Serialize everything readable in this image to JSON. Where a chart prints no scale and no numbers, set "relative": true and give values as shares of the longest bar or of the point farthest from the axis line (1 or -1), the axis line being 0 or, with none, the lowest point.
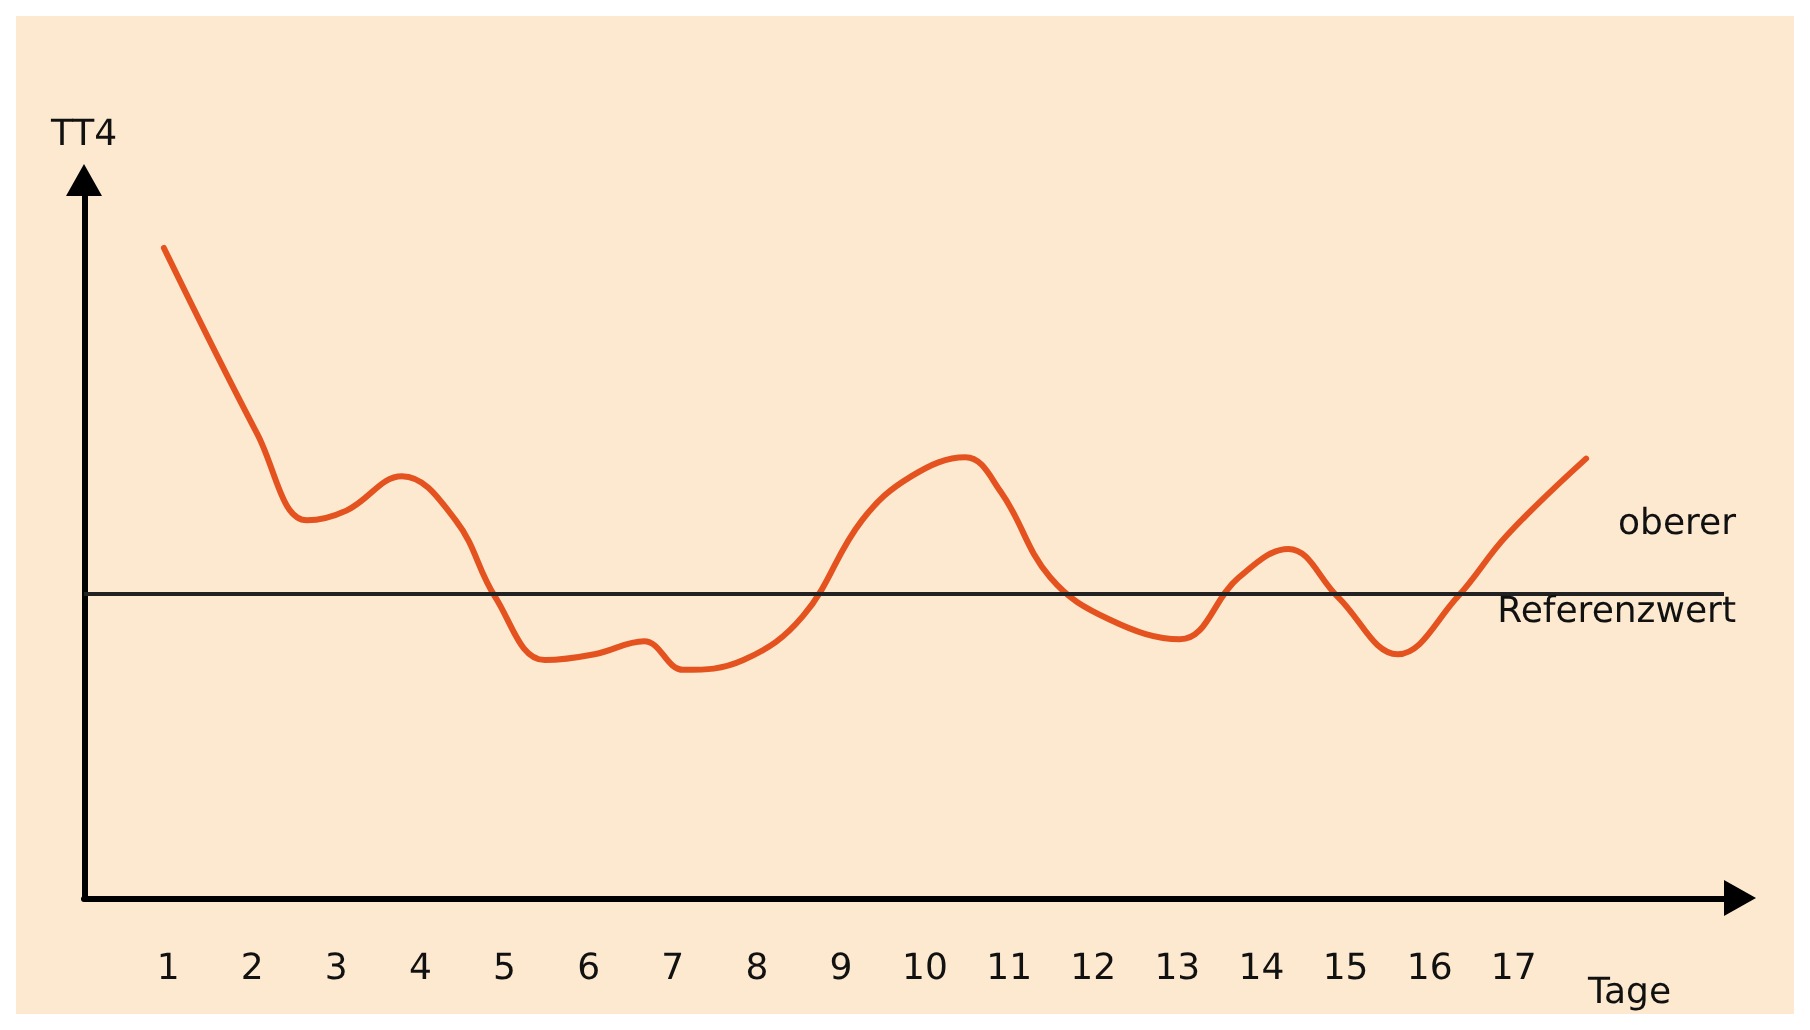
{
  "chart_data": {
    "type": "line",
    "relative": true,
    "ylabel": "TT4",
    "xlabel": "Tage",
    "x": [
      0.95,
      2.06,
      2.65,
      3.12,
      3.78,
      4.42,
      4.89,
      5.48,
      6.07,
      6.66,
      7.13,
      7.84,
      8.55,
      9.25,
      9.84,
      10.48,
      10.9,
      11.49,
      12.2,
      13.03,
      13.73,
      14.32,
      14.91,
      15.62,
      16.33,
      16.92,
      17.86
    ],
    "series": [
      {
        "color": "#e4531f",
        "values": [
          1.0,
          0.714,
          0.581,
          0.596,
          0.649,
          0.581,
          0.463,
          0.366,
          0.375,
          0.395,
          0.351,
          0.366,
          0.434,
          0.581,
          0.649,
          0.678,
          0.625,
          0.493,
          0.428,
          0.398,
          0.493,
          0.537,
          0.463,
          0.375,
          0.463,
          0.558,
          0.676
        ]
      }
    ],
    "xlim": [
      0,
      19.5
    ],
    "xticks": [
      1,
      2,
      3,
      4,
      5,
      6,
      7,
      8,
      9,
      10,
      11,
      12,
      13,
      14,
      15,
      16,
      17
    ],
    "ref_lines": [
      {
        "axis": "y",
        "value": 0.469,
        "label": "oberer Referenzwert",
        "color": "#222222"
      }
    ],
    "grid": false,
    "marker": "none",
    "line_style": "solid"
  }
}
